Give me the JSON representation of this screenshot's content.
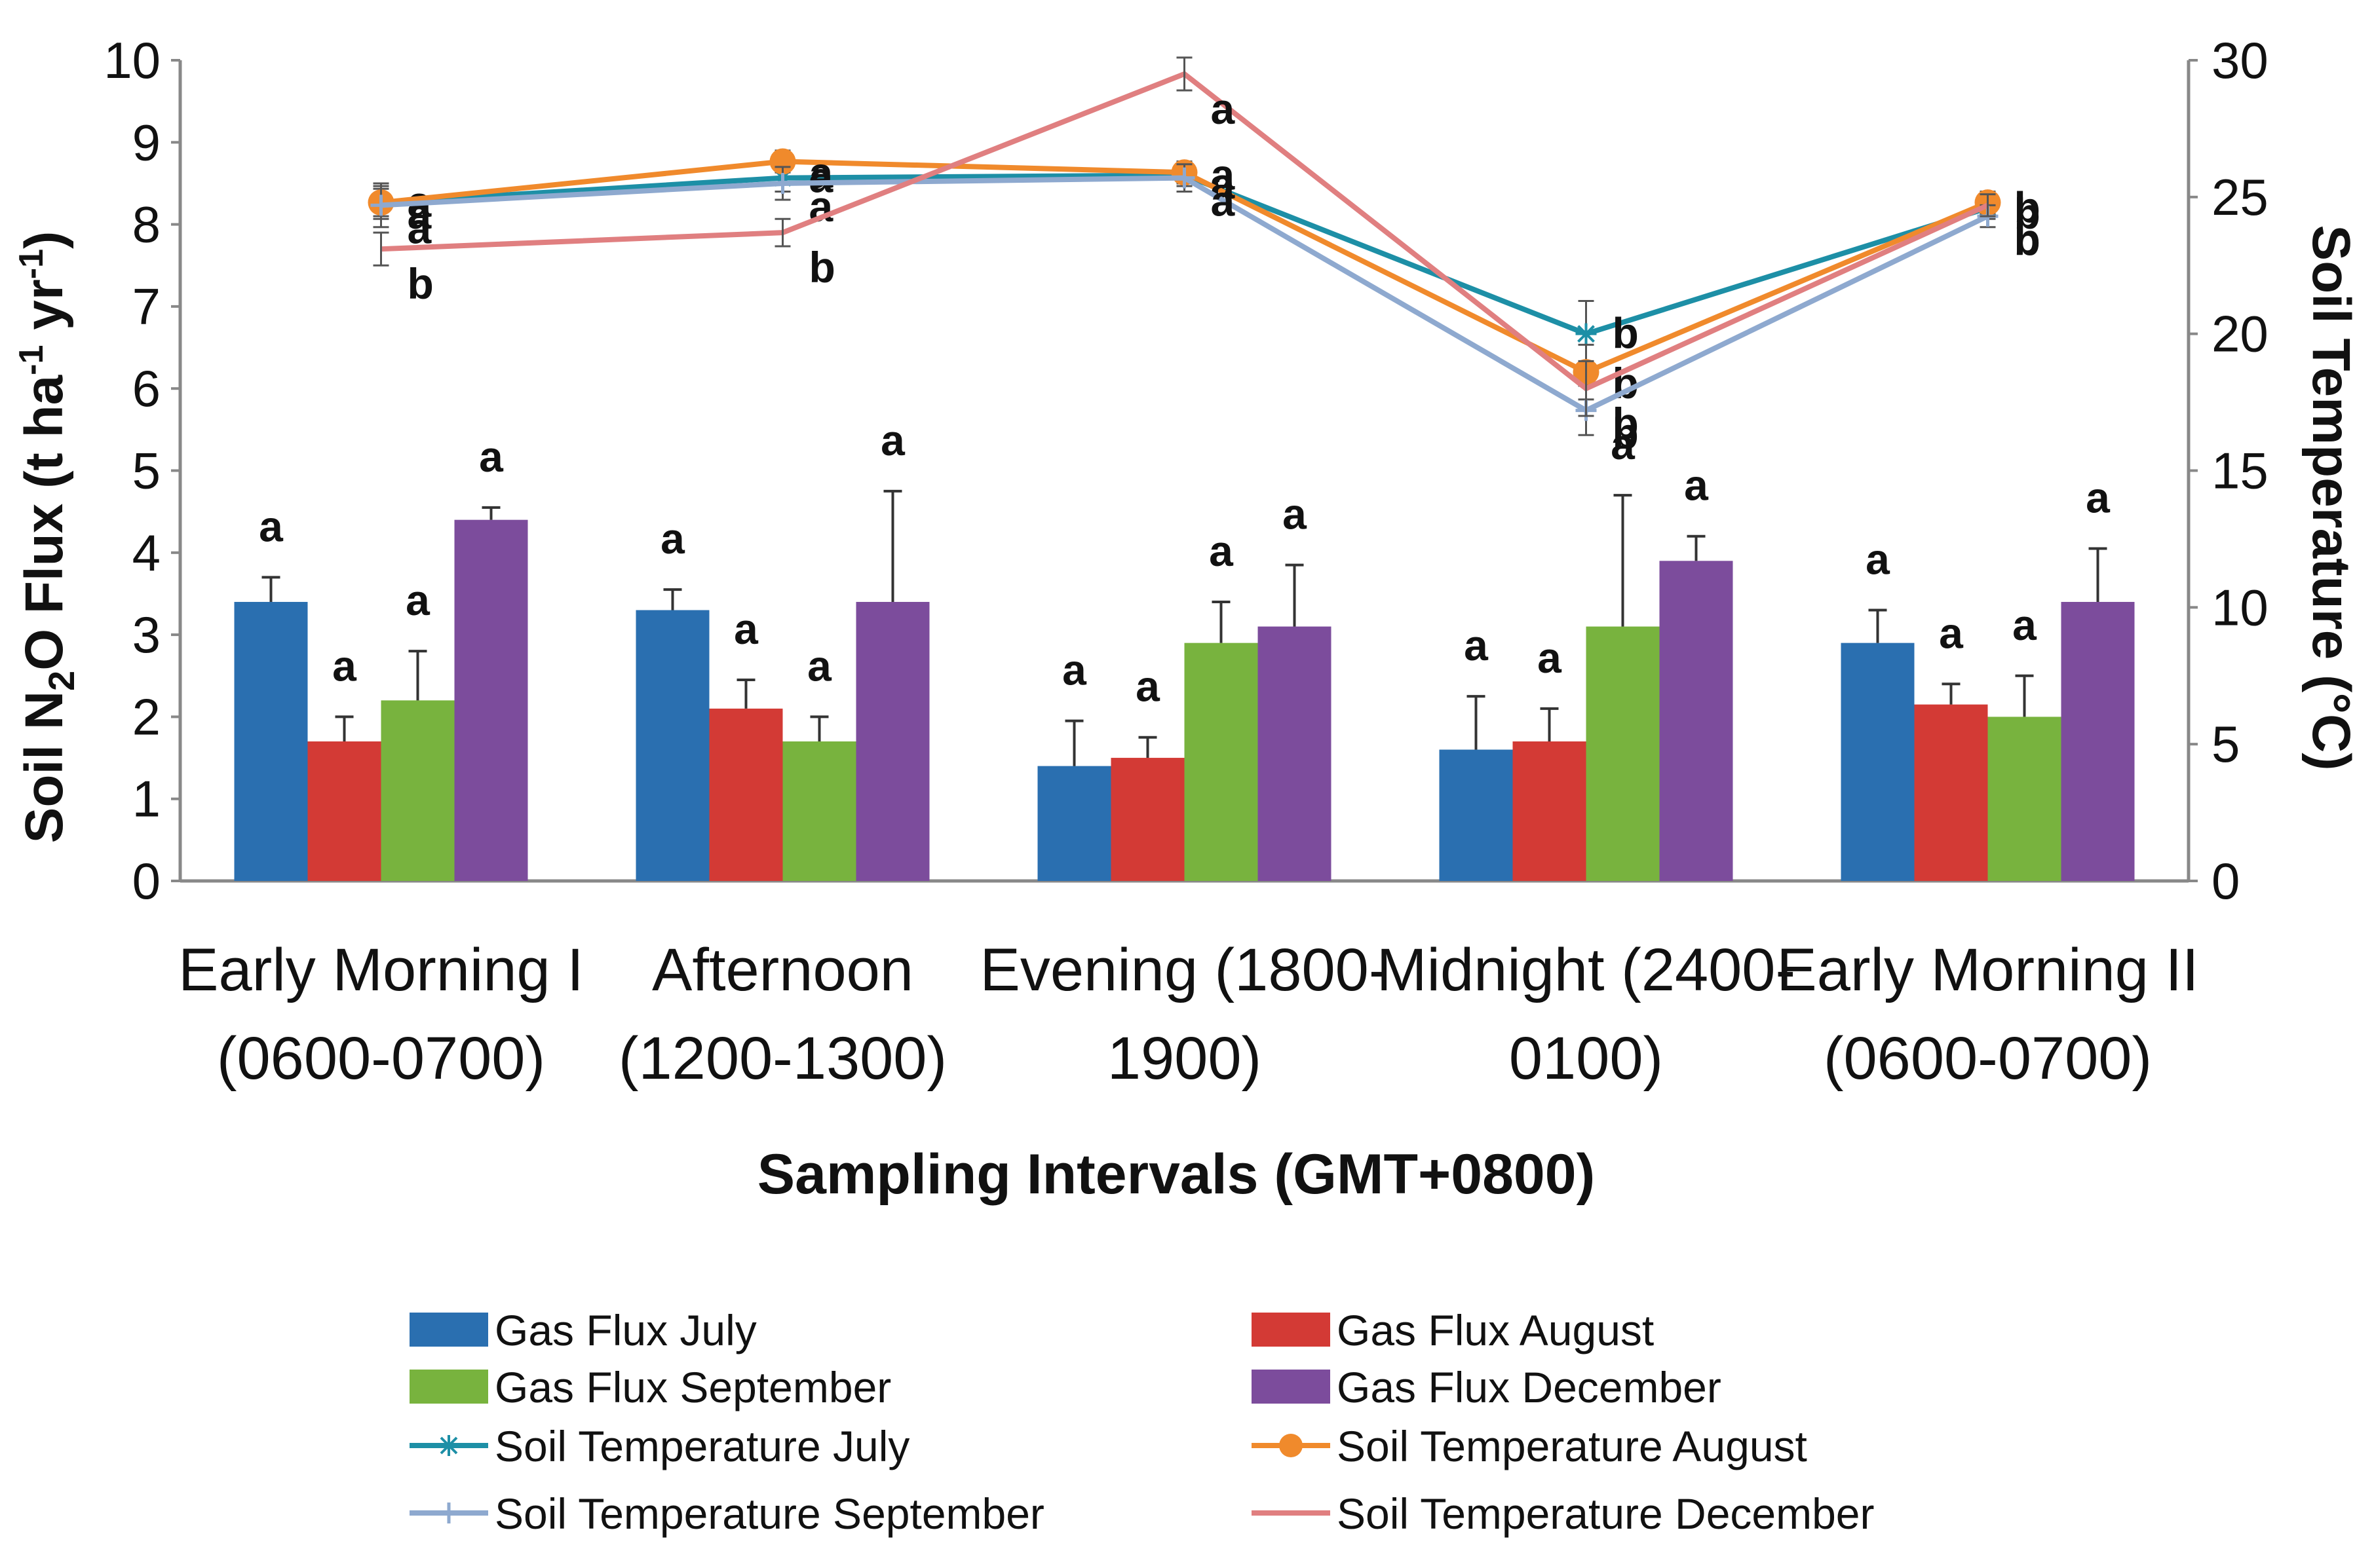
{
  "chart_data": {
    "type": "bar",
    "title": "",
    "xlabel": "Sampling Intervals (GMT+0800)",
    "ylabel_parts": {
      "pre": "Soil N",
      "sub": "2",
      "mid": "O Flux (t ha",
      "sup1": "-1",
      "gap": " yr",
      "sup2": "-1",
      "post": ")"
    },
    "y2label": "Soil Temperature (°C)",
    "ylim": [
      0,
      10
    ],
    "y2lim": [
      0,
      30
    ],
    "yticks": [
      "0",
      "1",
      "2",
      "3",
      "4",
      "5",
      "6",
      "7",
      "8",
      "9",
      "10"
    ],
    "y2ticks": [
      "0",
      "5",
      "10",
      "15",
      "20",
      "25",
      "30"
    ],
    "categories": [
      [
        "Early Morning I",
        "(0600-0700)"
      ],
      [
        "Afternoon",
        "(1200-1300)"
      ],
      [
        "Evening (1800-",
        "1900)"
      ],
      [
        "Midnight (2400-",
        "0100)"
      ],
      [
        "Early Morning II",
        "(0600-0700)"
      ]
    ],
    "bar_series": [
      {
        "name": "Gas Flux July",
        "color": "#2a6fb0",
        "values": [
          3.4,
          3.3,
          1.4,
          1.6,
          2.9
        ],
        "errors": [
          0.3,
          0.25,
          0.55,
          0.65,
          0.4
        ],
        "letters": [
          "a",
          "a",
          "a",
          "a",
          "a"
        ]
      },
      {
        "name": "Gas Flux August",
        "color": "#d33a35",
        "values": [
          1.7,
          2.1,
          1.5,
          1.7,
          2.15
        ],
        "errors": [
          0.3,
          0.35,
          0.25,
          0.4,
          0.25
        ],
        "letters": [
          "a",
          "a",
          "a",
          "a",
          "a"
        ]
      },
      {
        "name": "Gas Flux September",
        "color": "#78b33e",
        "values": [
          2.2,
          1.7,
          2.9,
          3.1,
          2.0
        ],
        "errors": [
          0.6,
          0.3,
          0.5,
          1.6,
          0.5
        ],
        "letters": [
          "a",
          "a",
          "a",
          "a",
          "a"
        ]
      },
      {
        "name": "Gas Flux December",
        "color": "#7c4c9c",
        "values": [
          4.4,
          3.4,
          3.1,
          3.9,
          3.4
        ],
        "errors": [
          0.15,
          1.35,
          0.75,
          0.3,
          0.65
        ],
        "letters": [
          "a",
          "a",
          "a",
          "a",
          "a"
        ]
      }
    ],
    "line_series": [
      {
        "name": "Soil Temperature July",
        "color": "#1d8fa6",
        "marker": "asterisk",
        "values": [
          24.8,
          25.7,
          25.8,
          20.0,
          24.6
        ],
        "errors": [
          0.6,
          0.5,
          0.4,
          1.2,
          0.4
        ],
        "letters": [
          "a",
          "a",
          "a",
          "b",
          "b"
        ]
      },
      {
        "name": "Soil Temperature August",
        "color": "#f08a2c",
        "marker": "circle",
        "values": [
          24.8,
          26.3,
          25.9,
          18.6,
          24.8
        ],
        "errors": [
          0.5,
          0.4,
          0.4,
          1.0,
          0.4
        ],
        "letters": [
          "a",
          "a",
          "a",
          "b",
          "b"
        ]
      },
      {
        "name": "Soil Temperature September",
        "color": "#8ea9cf",
        "marker": "plus",
        "values": [
          24.7,
          25.5,
          25.7,
          17.2,
          24.3
        ],
        "errors": [
          0.8,
          0.6,
          0.5,
          0.9,
          0.4
        ],
        "letters": [
          "a",
          "a",
          "a",
          "b",
          "b"
        ]
      },
      {
        "name": "Soil Temperature December",
        "color": "#e07f80",
        "marker": "none",
        "values": [
          23.1,
          23.7,
          29.5,
          18.0,
          24.7
        ],
        "errors": [
          0.6,
          0.5,
          0.6,
          1.0,
          0.4
        ],
        "letters": [
          "b",
          "b",
          "a",
          "b",
          "b"
        ]
      }
    ]
  }
}
